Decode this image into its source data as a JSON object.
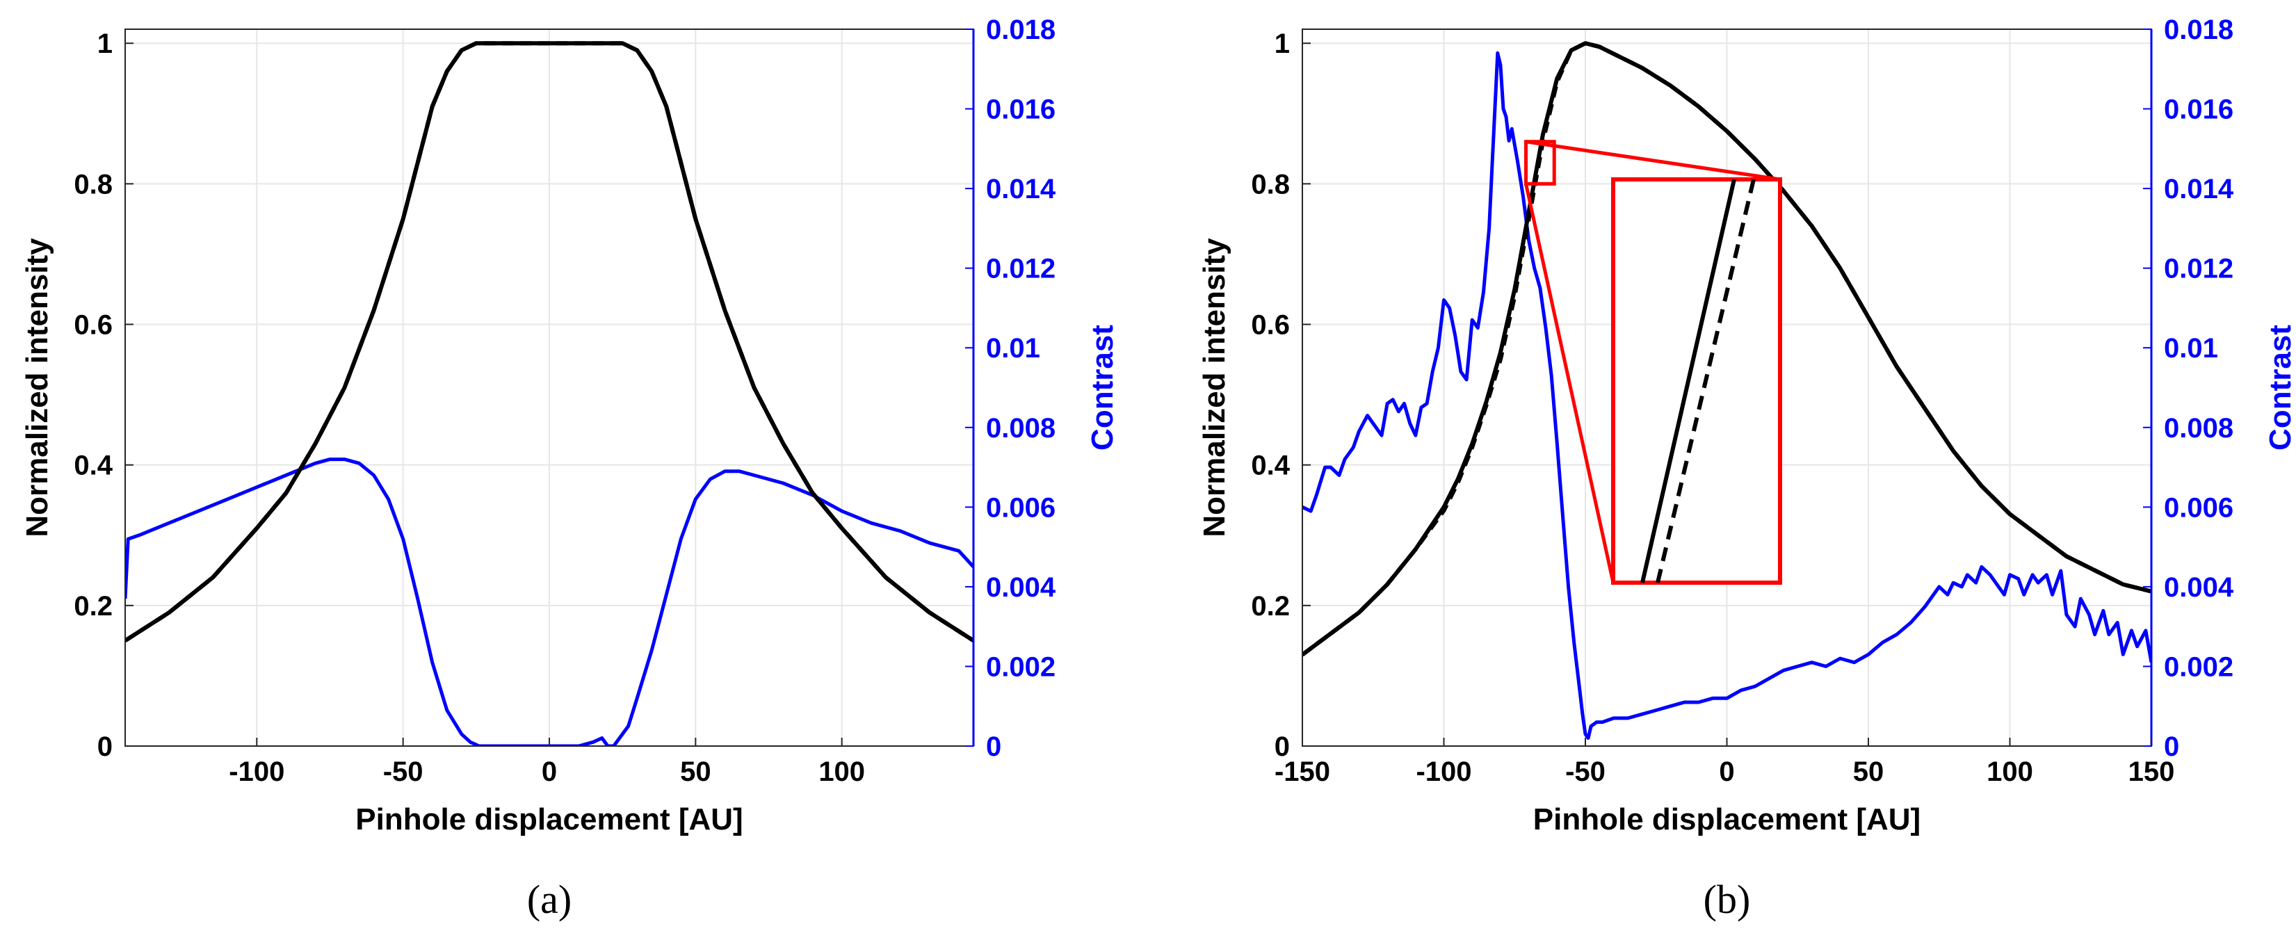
{
  "colors": {
    "intensity": "#000000",
    "contrast": "#0000ff",
    "grid": "#e6e6e6",
    "axis": "#262626",
    "zoom": "#ff0000"
  },
  "chart_data": [
    {
      "type": "line",
      "caption": "(a)",
      "xlabel": "Pinhole displacement [AU]",
      "ylabel": "Normalized intensity",
      "y2label": "Contrast",
      "xlim": [
        -145,
        145
      ],
      "ylim": [
        0,
        1.02
      ],
      "y2lim": [
        0,
        0.018
      ],
      "xticks": [
        -100,
        -50,
        0,
        50,
        100
      ],
      "xtick_labels": [
        "-100",
        "-50",
        "0",
        "50",
        "100"
      ],
      "yticks": [
        0,
        0.2,
        0.4,
        0.6,
        0.8,
        1
      ],
      "ytick_labels": [
        "0",
        "0.2",
        "0.4",
        "0.6",
        "0.8",
        "1"
      ],
      "y2ticks": [
        0,
        0.002,
        0.004,
        0.006,
        0.008,
        0.01,
        0.012,
        0.014,
        0.016,
        0.018
      ],
      "y2tick_labels": [
        "0",
        "0.002",
        "0.004",
        "0.006",
        "0.008",
        "0.01",
        "0.012",
        "0.014",
        "0.016",
        "0.018"
      ],
      "grid": true,
      "series": [
        {
          "name": "Normalized intensity (solid)",
          "axis": "left",
          "style": "solid",
          "x": [
            -145,
            -130,
            -115,
            -100,
            -90,
            -80,
            -70,
            -60,
            -50,
            -40,
            -35,
            -30,
            -25,
            -20,
            -10,
            0,
            10,
            20,
            25,
            30,
            35,
            40,
            50,
            60,
            70,
            80,
            90,
            100,
            115,
            130,
            145
          ],
          "y": [
            0.15,
            0.19,
            0.24,
            0.31,
            0.36,
            0.43,
            0.51,
            0.62,
            0.75,
            0.91,
            0.96,
            0.99,
            1.0,
            1.0,
            1.0,
            1.0,
            1.0,
            1.0,
            1.0,
            0.99,
            0.96,
            0.91,
            0.75,
            0.62,
            0.51,
            0.43,
            0.36,
            0.31,
            0.24,
            0.19,
            0.15
          ]
        },
        {
          "name": "Normalized intensity (dashed)",
          "axis": "left",
          "style": "dashed",
          "x": [
            -145,
            -130,
            -115,
            -100,
            -90,
            -80,
            -70,
            -60,
            -50,
            -40,
            -35,
            -30,
            -25,
            -20,
            -10,
            0,
            10,
            20,
            25,
            30,
            35,
            40,
            50,
            60,
            70,
            80,
            90,
            100,
            115,
            130,
            145
          ],
          "y": [
            0.15,
            0.19,
            0.24,
            0.31,
            0.36,
            0.43,
            0.51,
            0.62,
            0.75,
            0.91,
            0.96,
            0.99,
            1.0,
            1.0,
            1.0,
            1.0,
            1.0,
            1.0,
            1.0,
            0.99,
            0.96,
            0.91,
            0.75,
            0.62,
            0.51,
            0.43,
            0.36,
            0.31,
            0.24,
            0.19,
            0.15
          ]
        },
        {
          "name": "Contrast",
          "axis": "right",
          "style": "solid",
          "x": [
            -145,
            -144,
            -140,
            -130,
            -120,
            -110,
            -100,
            -90,
            -80,
            -75,
            -70,
            -65,
            -60,
            -55,
            -50,
            -45,
            -40,
            -35,
            -30,
            -27,
            -24,
            -20,
            -10,
            0,
            10,
            15,
            18,
            20,
            22,
            24,
            27,
            30,
            35,
            40,
            45,
            50,
            55,
            60,
            65,
            70,
            80,
            90,
            100,
            110,
            120,
            130,
            140,
            145
          ],
          "y": [
            0.0037,
            0.0052,
            0.0053,
            0.0056,
            0.0059,
            0.0062,
            0.0065,
            0.0068,
            0.0071,
            0.0072,
            0.0072,
            0.0071,
            0.0068,
            0.0062,
            0.0052,
            0.0037,
            0.0021,
            0.0009,
            0.0003,
            0.0001,
            0.0,
            0.0,
            0.0,
            0.0,
            0.0,
            0.0001,
            0.0002,
            0.0,
            0.0,
            0.0002,
            0.0005,
            0.0012,
            0.0024,
            0.0038,
            0.0052,
            0.0062,
            0.0067,
            0.0069,
            0.0069,
            0.0068,
            0.0066,
            0.0063,
            0.0059,
            0.0056,
            0.0054,
            0.0051,
            0.0049,
            0.0045
          ]
        }
      ]
    },
    {
      "type": "line",
      "caption": "(b)",
      "xlabel": "Pinhole displacement [AU]",
      "ylabel": "Normalized intensity",
      "y2label": "Contrast",
      "xlim": [
        -150,
        150
      ],
      "ylim": [
        0,
        1.02
      ],
      "y2lim": [
        0,
        0.018
      ],
      "xticks": [
        -150,
        -100,
        -50,
        0,
        50,
        100,
        150
      ],
      "xtick_labels": [
        "-150",
        "-100",
        "-50",
        "0",
        "50",
        "100",
        "150"
      ],
      "yticks": [
        0,
        0.2,
        0.4,
        0.6,
        0.8,
        1
      ],
      "ytick_labels": [
        "0",
        "0.2",
        "0.4",
        "0.6",
        "0.8",
        "1"
      ],
      "y2ticks": [
        0,
        0.002,
        0.004,
        0.006,
        0.008,
        0.01,
        0.012,
        0.014,
        0.016,
        0.018
      ],
      "y2tick_labels": [
        "0",
        "0.002",
        "0.004",
        "0.006",
        "0.008",
        "0.01",
        "0.012",
        "0.014",
        "0.016",
        "0.018"
      ],
      "grid": true,
      "zoom_region": {
        "x": [
          -71,
          -61
        ],
        "y": [
          0.8,
          0.86
        ]
      },
      "series": [
        {
          "name": "Normalized intensity (solid)",
          "axis": "left",
          "style": "solid",
          "x": [
            -150,
            -140,
            -130,
            -120,
            -110,
            -100,
            -95,
            -90,
            -85,
            -80,
            -75,
            -70,
            -65,
            -60,
            -55,
            -50,
            -45,
            -40,
            -30,
            -20,
            -10,
            0,
            10,
            20,
            30,
            40,
            50,
            60,
            70,
            80,
            90,
            100,
            110,
            120,
            130,
            140,
            150
          ],
          "y": [
            0.13,
            0.16,
            0.19,
            0.23,
            0.28,
            0.34,
            0.38,
            0.43,
            0.49,
            0.56,
            0.65,
            0.76,
            0.87,
            0.95,
            0.99,
            1.0,
            0.995,
            0.985,
            0.965,
            0.94,
            0.91,
            0.875,
            0.835,
            0.79,
            0.74,
            0.68,
            0.61,
            0.54,
            0.48,
            0.42,
            0.37,
            0.33,
            0.3,
            0.27,
            0.25,
            0.23,
            0.22
          ]
        },
        {
          "name": "Normalized intensity (dashed)",
          "axis": "left",
          "style": "dashed",
          "x": [
            -150,
            -140,
            -130,
            -120,
            -110,
            -100,
            -95,
            -90,
            -85,
            -80,
            -75,
            -70,
            -65,
            -60,
            -55,
            -50,
            -45,
            -40,
            -30,
            -20,
            -10,
            0,
            10,
            20,
            30,
            40,
            50,
            60,
            70,
            80,
            90,
            100,
            110,
            120,
            130,
            140,
            150
          ],
          "y": [
            0.13,
            0.16,
            0.19,
            0.23,
            0.28,
            0.335,
            0.375,
            0.425,
            0.485,
            0.55,
            0.64,
            0.75,
            0.86,
            0.945,
            0.99,
            1.0,
            0.995,
            0.985,
            0.965,
            0.94,
            0.91,
            0.875,
            0.835,
            0.79,
            0.74,
            0.68,
            0.61,
            0.54,
            0.48,
            0.42,
            0.37,
            0.33,
            0.3,
            0.27,
            0.25,
            0.23,
            0.22
          ]
        },
        {
          "name": "Contrast",
          "axis": "right",
          "style": "solid",
          "x": [
            -150,
            -147,
            -145,
            -142,
            -140,
            -137,
            -135,
            -132,
            -130,
            -127,
            -125,
            -122,
            -120,
            -118,
            -116,
            -114,
            -112,
            -110,
            -108,
            -106,
            -104,
            -102,
            -100,
            -98,
            -96,
            -94,
            -92,
            -90,
            -88,
            -86,
            -84,
            -83,
            -81,
            -80,
            -79,
            -78,
            -77,
            -76,
            -74,
            -72,
            -70,
            -68,
            -66,
            -64,
            -62,
            -60,
            -58,
            -56,
            -54,
            -52,
            -51,
            -50,
            -49,
            -48,
            -46,
            -44,
            -40,
            -35,
            -30,
            -25,
            -20,
            -15,
            -10,
            -5,
            0,
            5,
            10,
            15,
            20,
            25,
            30,
            35,
            40,
            45,
            50,
            55,
            60,
            65,
            70,
            75,
            78,
            80,
            83,
            85,
            88,
            90,
            93,
            95,
            98,
            100,
            103,
            105,
            108,
            110,
            113,
            115,
            118,
            120,
            123,
            125,
            128,
            130,
            133,
            135,
            138,
            140,
            143,
            145,
            148,
            150
          ],
          "y": [
            0.006,
            0.0059,
            0.0063,
            0.007,
            0.007,
            0.0068,
            0.0072,
            0.0075,
            0.0079,
            0.0083,
            0.0081,
            0.0078,
            0.0086,
            0.0087,
            0.0084,
            0.0086,
            0.0081,
            0.0078,
            0.0085,
            0.0086,
            0.0094,
            0.01,
            0.0112,
            0.011,
            0.0103,
            0.0094,
            0.0092,
            0.0107,
            0.0105,
            0.0114,
            0.013,
            0.0145,
            0.0174,
            0.0171,
            0.016,
            0.0158,
            0.0152,
            0.0155,
            0.0147,
            0.0138,
            0.0127,
            0.012,
            0.0115,
            0.0105,
            0.0093,
            0.0076,
            0.0058,
            0.004,
            0.0026,
            0.0014,
            0.0008,
            0.0003,
            0.0002,
            0.0005,
            0.0006,
            0.0006,
            0.0007,
            0.0007,
            0.0008,
            0.0009,
            0.001,
            0.0011,
            0.0011,
            0.0012,
            0.0012,
            0.0014,
            0.0015,
            0.0017,
            0.0019,
            0.002,
            0.0021,
            0.002,
            0.0022,
            0.0021,
            0.0023,
            0.0026,
            0.0028,
            0.0031,
            0.0035,
            0.004,
            0.0038,
            0.0041,
            0.004,
            0.0043,
            0.0041,
            0.0045,
            0.0043,
            0.0041,
            0.0038,
            0.0043,
            0.0042,
            0.0038,
            0.0043,
            0.0041,
            0.0043,
            0.0038,
            0.0044,
            0.0033,
            0.003,
            0.0037,
            0.0033,
            0.0028,
            0.0034,
            0.0028,
            0.0031,
            0.0023,
            0.0029,
            0.0025,
            0.0029,
            0.0021
          ]
        }
      ]
    }
  ]
}
